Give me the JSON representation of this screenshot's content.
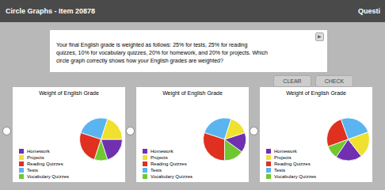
{
  "title": "Circle Graphs - Item 20878",
  "annotations": [
    "Questi",
    "Your final English grade is weighted as follows: 25% for tests, 25% for reading\nquizzes, 10% for vocabulary quizzes, 20% for homework, and 20% for projects. Which\ncircle graph correctly shows how your English grades are weighted?",
    "▶",
    "CLEAR",
    "CHECK"
  ],
  "chart_data": [
    {
      "type": "pie",
      "title": "Weight of English Grade",
      "categories": [
        "Tests",
        "Reading Quizzes",
        "Vocabulary Quizzes",
        "Homework",
        "Projects"
      ],
      "values": [
        25,
        25,
        10,
        20,
        20
      ],
      "colors": [
        "#5ab4f0",
        "#e03020",
        "#70c830",
        "#7030b0",
        "#f0e030"
      ],
      "legend": "lower left"
    },
    {
      "type": "pie",
      "title": "Weight of English Grade",
      "categories": [
        "Tests",
        "Reading Quizzes",
        "Vocabulary Quizzes",
        "Homework",
        "Projects"
      ],
      "values": [
        25,
        30,
        15,
        15,
        15
      ],
      "colors": [
        "#5ab4f0",
        "#e03020",
        "#70c830",
        "#7030b0",
        "#f0e030"
      ],
      "legend": "lower left"
    },
    {
      "type": "pie",
      "title": "Weight of English Grade",
      "categories": [
        "Tests",
        "Reading Quizzes",
        "Vocabulary Quizzes",
        "Homework",
        "Projects"
      ],
      "values": [
        25,
        25,
        10,
        20,
        20
      ],
      "colors": [
        "#5ab4f0",
        "#e03020",
        "#70c830",
        "#7030b0",
        "#f0e030"
      ],
      "legend": "lower left"
    }
  ]
}
